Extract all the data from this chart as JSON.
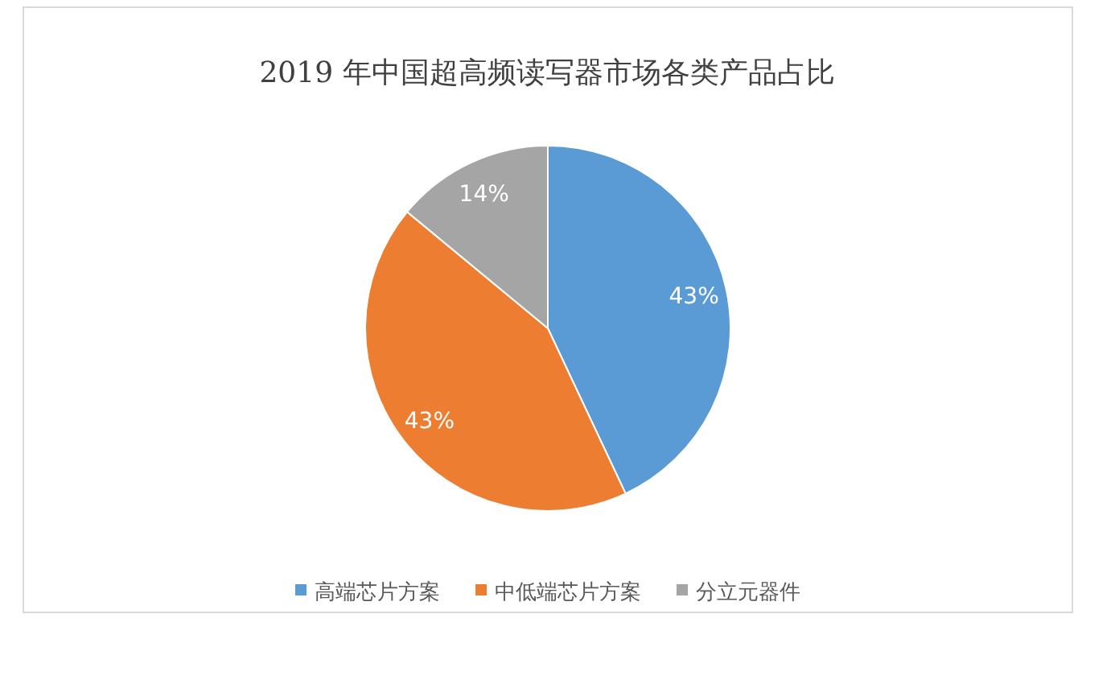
{
  "chart_data": {
    "type": "pie",
    "title": "2019 年中国超高频读写器市场各类产品占比",
    "categories": [
      "高端芯片方案",
      "中低端芯片方案",
      "分立元器件"
    ],
    "values": [
      43,
      43,
      14
    ],
    "colors": [
      "#5b9bd5",
      "#ed7d31",
      "#a5a5a5"
    ],
    "value_labels": [
      "43%",
      "43%",
      "14%"
    ],
    "legend": "bottom"
  }
}
